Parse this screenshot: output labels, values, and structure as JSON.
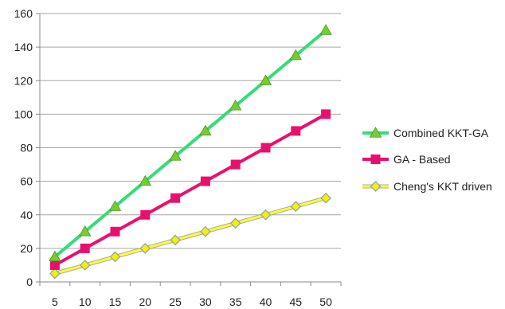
{
  "chart_data": {
    "type": "line",
    "title": "",
    "xlabel": "",
    "ylabel": "",
    "x": [
      5,
      10,
      15,
      20,
      25,
      30,
      35,
      40,
      45,
      50
    ],
    "ylim": [
      0,
      160
    ],
    "yticks": [
      0,
      20,
      40,
      60,
      80,
      100,
      120,
      140,
      160
    ],
    "grid": "horizontal",
    "legend_position": "right",
    "series": [
      {
        "name": "Combined KKT-GA",
        "values": [
          15,
          30,
          45,
          60,
          75,
          90,
          105,
          120,
          135,
          150
        ],
        "line_color": "#33dd77",
        "marker": "triangle",
        "marker_color": "#77cc33"
      },
      {
        "name": "GA - Based",
        "values": [
          10,
          20,
          30,
          40,
          50,
          60,
          70,
          80,
          90,
          100
        ],
        "line_color": "#e8106f",
        "marker": "square",
        "marker_color": "#e8106f"
      },
      {
        "name": "Cheng's KKT driven",
        "values": [
          5,
          10,
          15,
          20,
          25,
          30,
          35,
          40,
          45,
          50
        ],
        "line_color": "#ffff33",
        "marker": "diamond",
        "marker_color": "#f5f000"
      }
    ]
  }
}
